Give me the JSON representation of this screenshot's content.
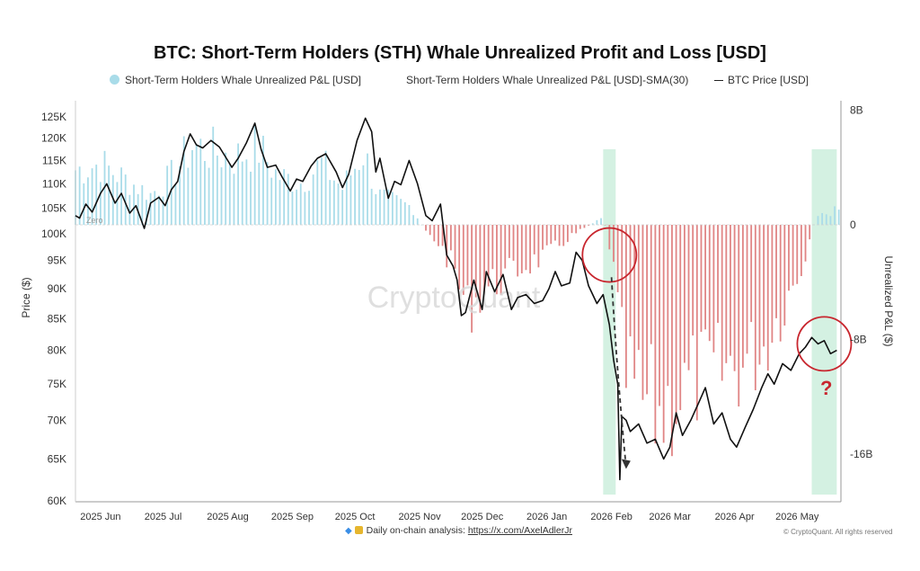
{
  "chart_data": {
    "type": "bar+line",
    "title": "BTC: Short-Term Holders (STH) Whale Unrealized Profit and Loss [USD]",
    "legend": [
      "Short-Term Holders Whale Unrealized P&L [USD]",
      "Short-Term Holders Whale Unrealized P&L [USD]-SMA(30)",
      "BTC Price [USD]"
    ],
    "legend_placement": "top",
    "ylabel_left": "Price ($)",
    "ylabel_right": "Unrealized P&L ($)",
    "y_left_scale": "log",
    "y_left_ticks": [
      "125K",
      "120K",
      "115K",
      "110K",
      "105K",
      "100K",
      "95K",
      "90K",
      "85K",
      "80K",
      "75K",
      "70K",
      "65K",
      "60K"
    ],
    "y_left_values": [
      125000,
      120000,
      115000,
      110000,
      105000,
      100000,
      95000,
      90000,
      85000,
      80000,
      75000,
      70000,
      65000,
      60000
    ],
    "y_left_range": [
      60000,
      130000
    ],
    "y_right_ticks": [
      "8B",
      "0",
      "-8B",
      "-16B"
    ],
    "y_right_values": [
      8,
      0,
      -8,
      -16
    ],
    "y_right_range": [
      -19,
      8.3
    ],
    "y_right_unit": "billion USD",
    "zero_label": "Zero",
    "x_ticks": [
      "2025 Jun",
      "2025 Jul",
      "2025 Aug",
      "2025 Sep",
      "2025 Oct",
      "2025 Nov",
      "2025 Dec",
      "2026 Jan",
      "2026 Feb",
      "2026 Mar",
      "2026 Apr",
      "2026 May"
    ],
    "x_range": [
      "2025-05-20",
      "2026-05-22"
    ],
    "grid": false,
    "colors": {
      "profit_bars": "#a9dce9",
      "loss_bars": "#e08585",
      "price_line": "#111111",
      "highlight_band": "#cdeedd",
      "annotation": "#c8262e"
    },
    "highlight_bands": [
      {
        "start": "2026-01-28",
        "end": "2026-02-03"
      },
      {
        "start": "2026-05-08",
        "end": "2026-05-20"
      }
    ],
    "annotations": [
      {
        "type": "circle",
        "date": "2026-01-31",
        "price": 96000
      },
      {
        "type": "arrow",
        "from_date": "2026-02-01",
        "from_price": 92000,
        "to_date": "2026-02-08",
        "to_price": 64000
      },
      {
        "type": "circle",
        "date": "2026-05-14",
        "price": 81000
      },
      {
        "type": "text",
        "text": "?",
        "date": "2026-05-15",
        "price": 73500
      }
    ],
    "price_series": [
      [
        "2025-05-20",
        103500
      ],
      [
        "2025-05-22",
        103000
      ],
      [
        "2025-05-25",
        105800
      ],
      [
        "2025-05-28",
        104200
      ],
      [
        "2025-06-01",
        108000
      ],
      [
        "2025-06-04",
        110000
      ],
      [
        "2025-06-08",
        106000
      ],
      [
        "2025-06-11",
        108000
      ],
      [
        "2025-06-15",
        104000
      ],
      [
        "2025-06-18",
        105500
      ],
      [
        "2025-06-22",
        101000
      ],
      [
        "2025-06-25",
        106000
      ],
      [
        "2025-06-29",
        107200
      ],
      [
        "2025-07-02",
        105500
      ],
      [
        "2025-07-05",
        108800
      ],
      [
        "2025-07-08",
        110500
      ],
      [
        "2025-07-11",
        117000
      ],
      [
        "2025-07-14",
        121000
      ],
      [
        "2025-07-17",
        118500
      ],
      [
        "2025-07-20",
        117800
      ],
      [
        "2025-07-24",
        119500
      ],
      [
        "2025-07-28",
        118000
      ],
      [
        "2025-08-01",
        115000
      ],
      [
        "2025-08-03",
        113500
      ],
      [
        "2025-08-06",
        115500
      ],
      [
        "2025-08-10",
        119000
      ],
      [
        "2025-08-14",
        123500
      ],
      [
        "2025-08-17",
        117500
      ],
      [
        "2025-08-20",
        113500
      ],
      [
        "2025-08-24",
        114000
      ],
      [
        "2025-08-27",
        111500
      ],
      [
        "2025-08-31",
        108500
      ],
      [
        "2025-09-03",
        111000
      ],
      [
        "2025-09-06",
        110500
      ],
      [
        "2025-09-10",
        113800
      ],
      [
        "2025-09-13",
        115500
      ],
      [
        "2025-09-17",
        116500
      ],
      [
        "2025-09-22",
        112500
      ],
      [
        "2025-09-25",
        109200
      ],
      [
        "2025-09-28",
        112000
      ],
      [
        "2025-10-02",
        119500
      ],
      [
        "2025-10-06",
        124700
      ],
      [
        "2025-10-09",
        121500
      ],
      [
        "2025-10-11",
        112500
      ],
      [
        "2025-10-13",
        115500
      ],
      [
        "2025-10-17",
        107000
      ],
      [
        "2025-10-20",
        110500
      ],
      [
        "2025-10-23",
        109800
      ],
      [
        "2025-10-27",
        115000
      ],
      [
        "2025-10-31",
        110000
      ],
      [
        "2025-11-04",
        103500
      ],
      [
        "2025-11-07",
        102500
      ],
      [
        "2025-11-11",
        105800
      ],
      [
        "2025-11-14",
        96000
      ],
      [
        "2025-11-17",
        94000
      ],
      [
        "2025-11-19",
        91500
      ],
      [
        "2025-11-21",
        85500
      ],
      [
        "2025-11-23",
        86000
      ],
      [
        "2025-11-27",
        91500
      ],
      [
        "2025-12-01",
        86500
      ],
      [
        "2025-12-03",
        93000
      ],
      [
        "2025-12-07",
        89500
      ],
      [
        "2025-12-11",
        92500
      ],
      [
        "2025-12-15",
        86500
      ],
      [
        "2025-12-18",
        88500
      ],
      [
        "2025-12-22",
        89000
      ],
      [
        "2025-12-26",
        87500
      ],
      [
        "2025-12-30",
        88000
      ],
      [
        "2026-01-02",
        90000
      ],
      [
        "2026-01-05",
        93000
      ],
      [
        "2026-01-08",
        90500
      ],
      [
        "2026-01-12",
        91000
      ],
      [
        "2026-01-15",
        96500
      ],
      [
        "2026-01-18",
        95000
      ],
      [
        "2026-01-21",
        90500
      ],
      [
        "2026-01-25",
        87500
      ],
      [
        "2026-01-28",
        89000
      ],
      [
        "2026-01-31",
        84000
      ],
      [
        "2026-02-02",
        78500
      ],
      [
        "2026-02-04",
        75000
      ],
      [
        "2026-02-05",
        62500
      ],
      [
        "2026-02-06",
        70500
      ],
      [
        "2026-02-08",
        70000
      ],
      [
        "2026-02-10",
        68500
      ],
      [
        "2026-02-14",
        69500
      ],
      [
        "2026-02-18",
        67000
      ],
      [
        "2026-02-22",
        67500
      ],
      [
        "2026-02-26",
        65000
      ],
      [
        "2026-03-01",
        66500
      ],
      [
        "2026-03-04",
        71000
      ],
      [
        "2026-03-07",
        68000
      ],
      [
        "2026-03-11",
        70000
      ],
      [
        "2026-03-15",
        72500
      ],
      [
        "2026-03-18",
        74500
      ],
      [
        "2026-03-22",
        69500
      ],
      [
        "2026-03-26",
        71000
      ],
      [
        "2026-03-30",
        67500
      ],
      [
        "2026-04-02",
        66500
      ],
      [
        "2026-04-06",
        69000
      ],
      [
        "2026-04-10",
        71500
      ],
      [
        "2026-04-14",
        74500
      ],
      [
        "2026-04-17",
        76500
      ],
      [
        "2026-04-20",
        75000
      ],
      [
        "2026-04-24",
        78000
      ],
      [
        "2026-04-28",
        77000
      ],
      [
        "2026-05-02",
        79500
      ],
      [
        "2026-05-05",
        80500
      ],
      [
        "2026-05-08",
        82000
      ],
      [
        "2026-05-11",
        81000
      ],
      [
        "2026-05-14",
        81500
      ],
      [
        "2026-05-17",
        79500
      ],
      [
        "2026-05-20",
        80000
      ]
    ],
    "pnl_series_billion": [
      [
        "2025-05-20",
        4.5
      ],
      [
        "2025-06-01",
        5.0
      ],
      [
        "2025-06-15",
        3.5
      ],
      [
        "2025-06-25",
        2.5
      ],
      [
        "2025-07-05",
        4.0
      ],
      [
        "2025-07-15",
        6.5
      ],
      [
        "2025-07-25",
        6.0
      ],
      [
        "2025-08-05",
        5.5
      ],
      [
        "2025-08-15",
        6.5
      ],
      [
        "2025-08-25",
        4.0
      ],
      [
        "2025-09-05",
        3.5
      ],
      [
        "2025-09-15",
        5.0
      ],
      [
        "2025-09-25",
        3.0
      ],
      [
        "2025-10-05",
        6.0
      ],
      [
        "2025-10-12",
        2.5
      ],
      [
        "2025-10-20",
        2.0
      ],
      [
        "2025-10-28",
        1.5
      ],
      [
        "2025-11-04",
        -0.6
      ],
      [
        "2025-11-10",
        -1.5
      ],
      [
        "2025-11-17",
        -3.5
      ],
      [
        "2025-11-24",
        -7.0
      ],
      [
        "2025-12-01",
        -5.5
      ],
      [
        "2025-12-10",
        -4.5
      ],
      [
        "2025-12-20",
        -3.5
      ],
      [
        "2026-01-01",
        -2.5
      ],
      [
        "2026-01-12",
        -1.0
      ],
      [
        "2026-01-20",
        -0.2
      ],
      [
        "2026-01-28",
        0.8
      ],
      [
        "2026-02-01",
        -2.5
      ],
      [
        "2026-02-07",
        -12.0
      ],
      [
        "2026-02-15",
        -14.5
      ],
      [
        "2026-02-25",
        -15.5
      ],
      [
        "2026-03-05",
        -14.0
      ],
      [
        "2026-03-15",
        -12.5
      ],
      [
        "2026-03-25",
        -12.0
      ],
      [
        "2026-04-05",
        -11.5
      ],
      [
        "2026-04-15",
        -10.0
      ],
      [
        "2026-04-25",
        -6.5
      ],
      [
        "2026-05-03",
        -3.5
      ],
      [
        "2026-05-10",
        0.6
      ],
      [
        "2026-05-20",
        1.2
      ]
    ]
  },
  "footer": {
    "text": "Daily on-chain analysis: ",
    "link": "https://x.com/AxelAdlerJr"
  },
  "copyright": "© CryptoQuant. All rights reserved",
  "watermark": "CryptoQuant"
}
